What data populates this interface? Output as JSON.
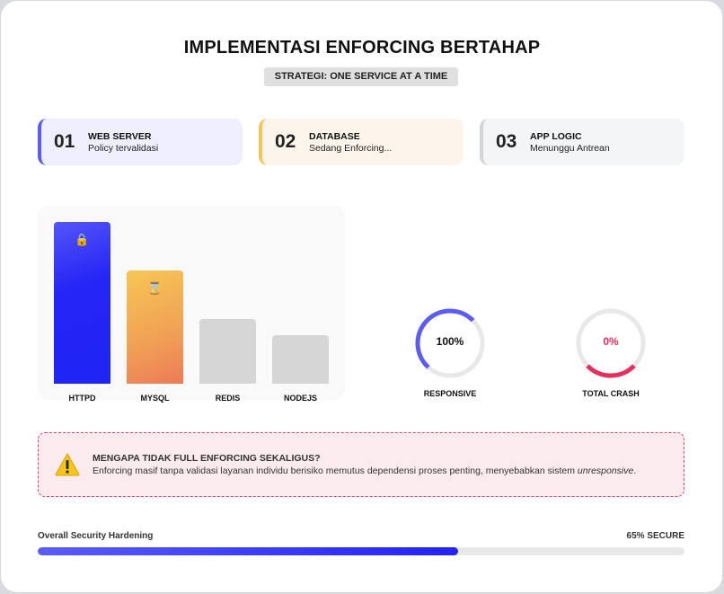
{
  "title": "IMPLEMENTASI ENFORCING BERTAHAP",
  "badge": "STRATEGI: ONE SERVICE AT A TIME",
  "steps": [
    {
      "num": "01",
      "name": "WEB SERVER",
      "status": "Policy tervalidasi",
      "accent": "#5b5cf6",
      "bg": "#eeeefc"
    },
    {
      "num": "02",
      "name": "DATABASE",
      "status": "Sedang Enforcing...",
      "accent": "#f6c552",
      "bg": "#fdf5ec"
    },
    {
      "num": "03",
      "name": "APP LOGIC",
      "status": "Menunggu Antrean",
      "accent": "#d4d4d4",
      "bg": "#f4f5f7"
    }
  ],
  "chart_data": {
    "type": "bar",
    "categories": [
      "HTTPD",
      "MYSQL",
      "REDIS",
      "NODEJS"
    ],
    "values": [
      100,
      70,
      40,
      30
    ],
    "icons": [
      "lock-icon",
      "hourglass-icon",
      "",
      ""
    ],
    "colors": [
      "linear-gradient(160deg,#5555f8,#2525f6 40%,#1f24f5)",
      "linear-gradient(160deg,#f7c655,#f0a055 60%,#ee7a58)",
      "#d6d6d6",
      "#d6d6d6"
    ]
  },
  "gauges": [
    {
      "value": "100%",
      "label": "RESPONSIVE",
      "color": "#5b5cf6",
      "text_color": "#111"
    },
    {
      "value": "0%",
      "label": "TOTAL CRASH",
      "color": "#e5305e",
      "text_color": "#e5305e"
    }
  ],
  "warning": {
    "heading": "MENGAPA TIDAK FULL ENFORCING SEKALIGUS?",
    "body": "Enforcing masif tanpa validasi layanan individu berisiko memutus dependensi proses penting, menyebabkan sistem ",
    "body_em": "unresponsive",
    "body_end": "."
  },
  "progress": {
    "label": "Overall Security Hardening",
    "value_label": "65% SECURE",
    "percent": 65
  }
}
